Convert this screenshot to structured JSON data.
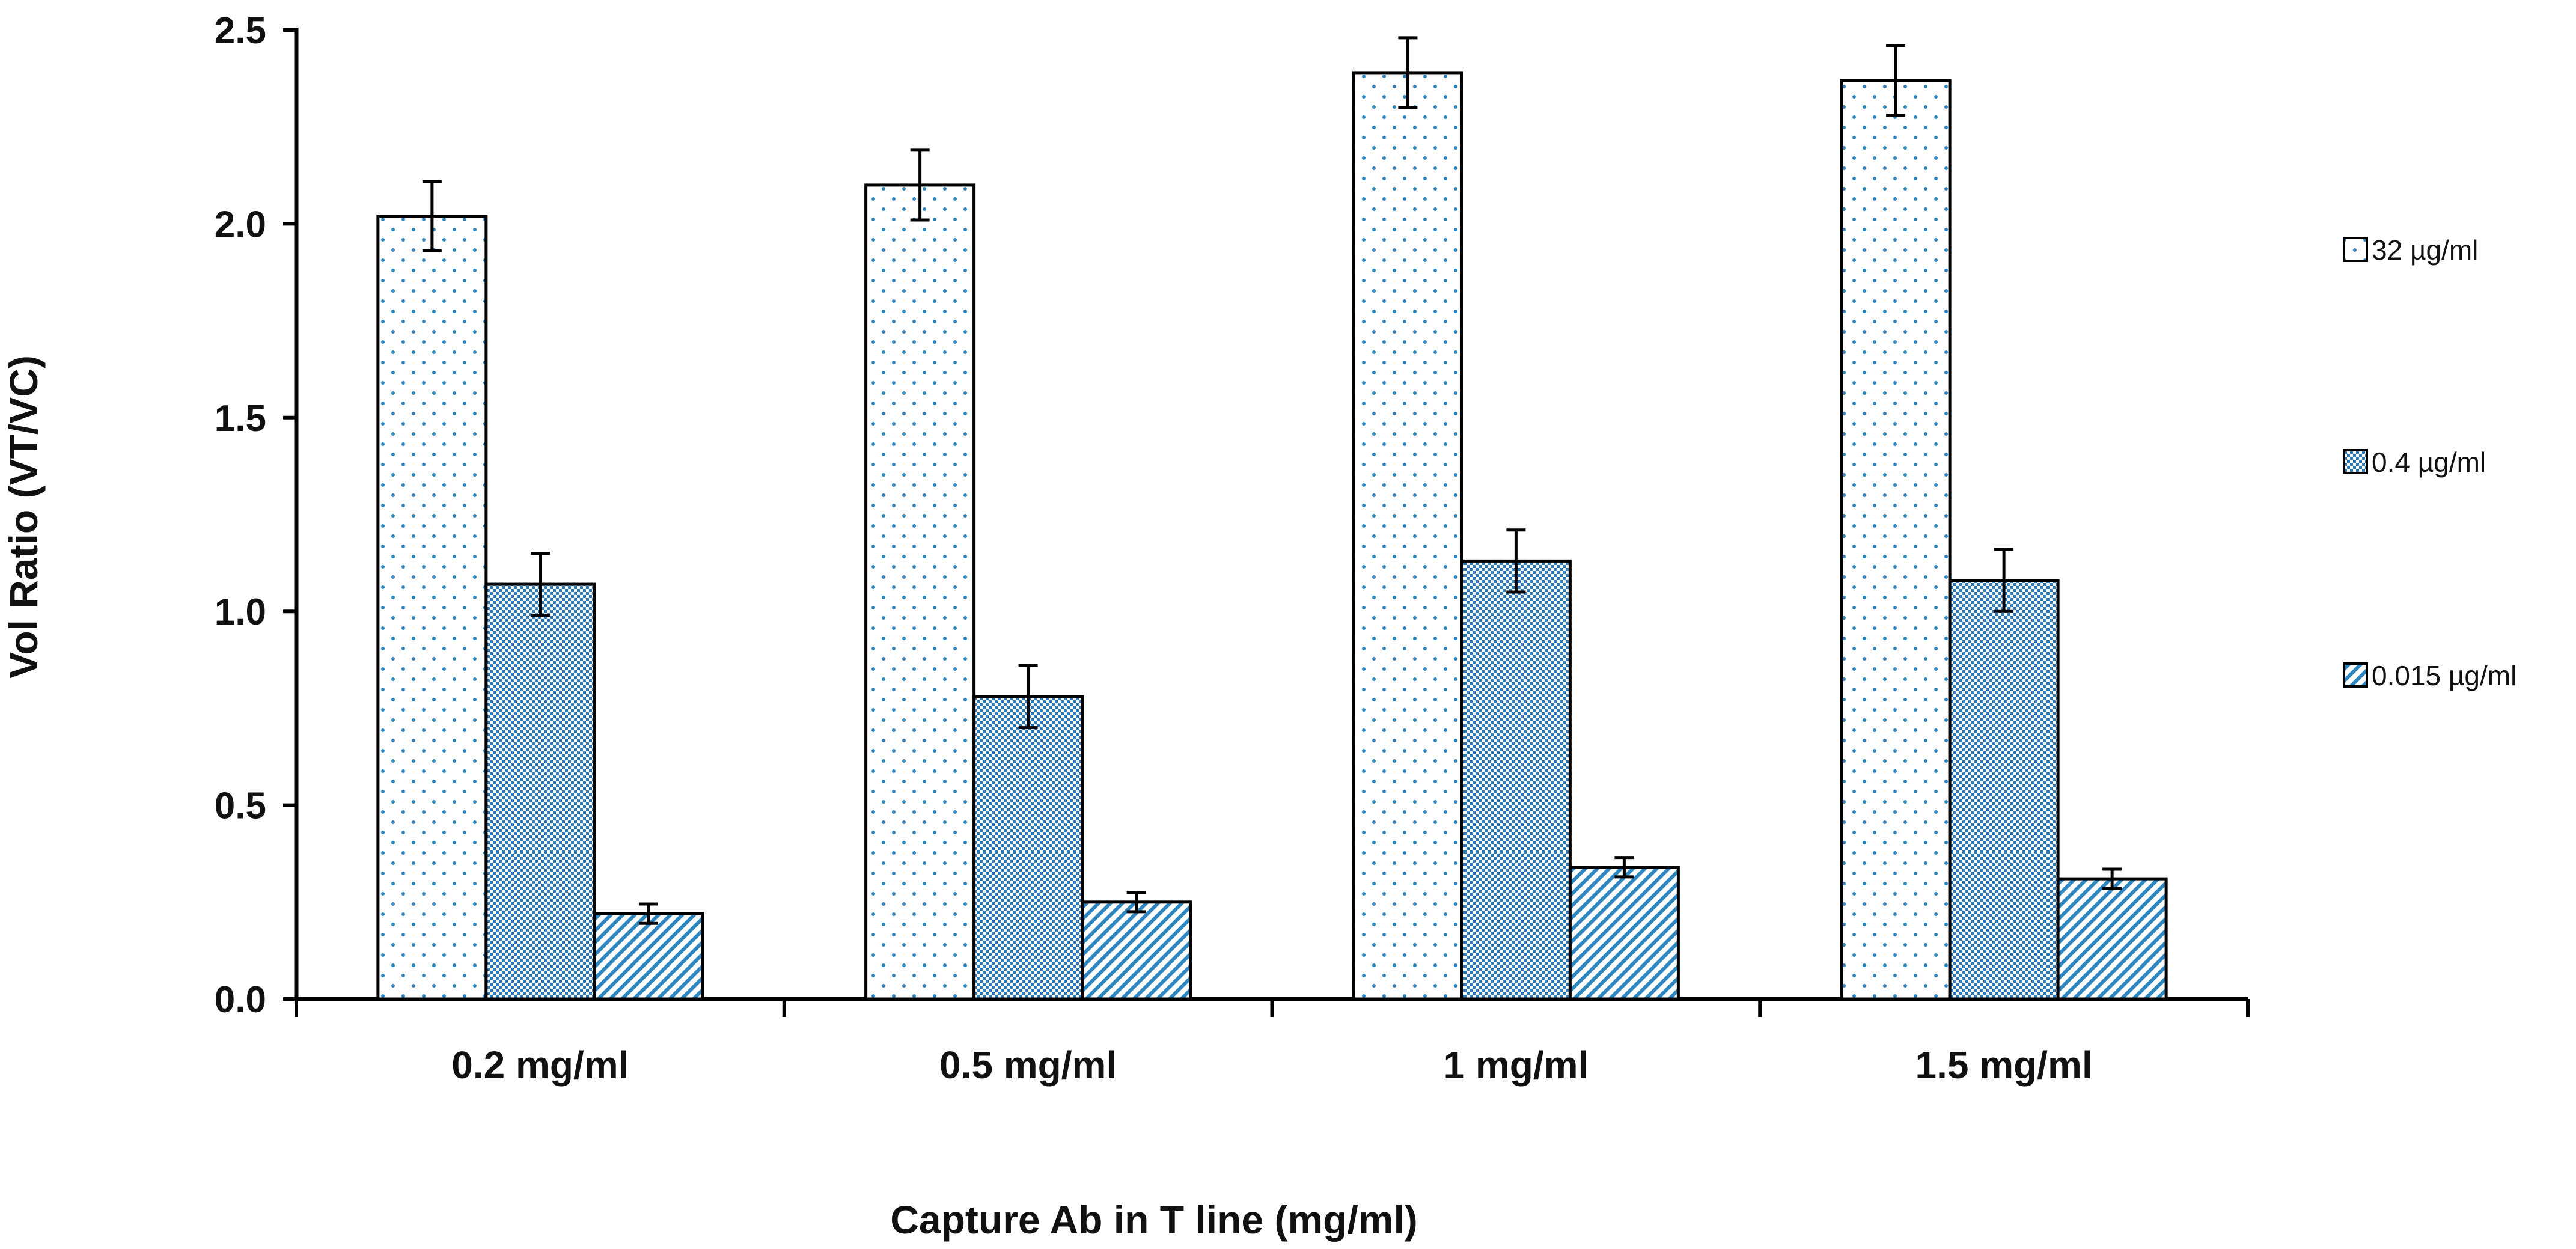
{
  "chart_data": {
    "type": "bar",
    "title": "",
    "xlabel": "Capture Ab in T line (mg/ml)",
    "ylabel": "Vol Ratio (VT/VC)",
    "ylim": [
      0,
      2.5
    ],
    "yticks": [
      "0.0",
      "0.5",
      "1.0",
      "1.5",
      "2.0",
      "2.5"
    ],
    "ytick_values": [
      0,
      0.5,
      1.0,
      1.5,
      2.0,
      2.5
    ],
    "categories": [
      "0.2 mg/ml",
      "0.5 mg/ml",
      "1 mg/ml",
      "1.5 mg/ml"
    ],
    "series": [
      {
        "name": "32 µg/ml",
        "pattern": "dots",
        "values": [
          2.02,
          2.1,
          2.39,
          2.37
        ],
        "errors": [
          0.09,
          0.09,
          0.09,
          0.09
        ]
      },
      {
        "name": "0.4 µg/ml",
        "pattern": "checker",
        "values": [
          1.07,
          0.78,
          1.13,
          1.08
        ],
        "errors": [
          0.08,
          0.08,
          0.08,
          0.08
        ]
      },
      {
        "name": "0.015 µg/ml",
        "pattern": "diagonal",
        "values": [
          0.22,
          0.25,
          0.34,
          0.31
        ],
        "errors": [
          0.025,
          0.025,
          0.025,
          0.025
        ]
      }
    ],
    "legend_position": "right",
    "grid": false,
    "colors": {
      "pattern": "#2e86c1",
      "fill_dark": "#4a93cf",
      "fill_light": "#ffffff",
      "stroke": "#000000"
    }
  }
}
